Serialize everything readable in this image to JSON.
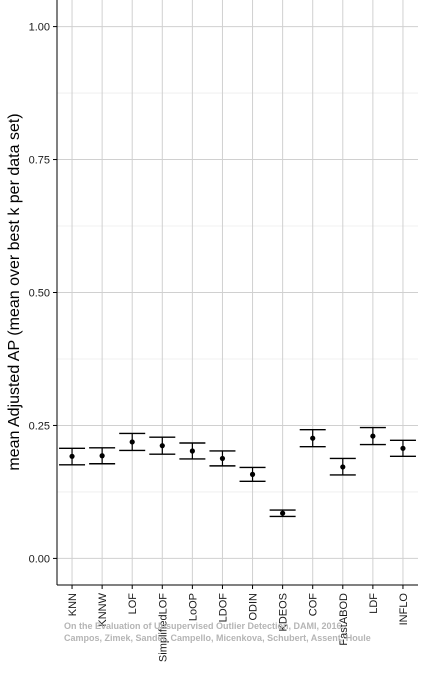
{
  "chart_data": {
    "type": "scatter",
    "ylabel": "mean Adjusted AP (mean over best k per data set)",
    "ylim": [
      -0.05,
      1.05
    ],
    "yticks": [
      "0.00",
      "0.25",
      "0.50",
      "0.75",
      "1.00"
    ],
    "grid": true,
    "categories": [
      "KNN",
      "KNNW",
      "LOF",
      "SimplifiedLOF",
      "LoOP",
      "LDOF",
      "ODIN",
      "KDEOS",
      "COF",
      "FastABOD",
      "LDF",
      "INFLO"
    ],
    "values": [
      0.192,
      0.193,
      0.219,
      0.212,
      0.202,
      0.188,
      0.158,
      0.085,
      0.226,
      0.172,
      0.23,
      0.207
    ],
    "lower": [
      0.176,
      0.178,
      0.203,
      0.196,
      0.187,
      0.174,
      0.145,
      0.079,
      0.21,
      0.157,
      0.214,
      0.192
    ],
    "upper": [
      0.207,
      0.208,
      0.235,
      0.228,
      0.217,
      0.202,
      0.171,
      0.091,
      0.242,
      0.188,
      0.246,
      0.222
    ],
    "colors": {
      "point": "#000000",
      "grid_major": "#d0d0d0",
      "grid_minor": "#ececec",
      "axis": "#000000"
    }
  },
  "watermark": {
    "line1": "On the Evaluation of Unsupervised Outlier Detection, DAMI, 2016.",
    "line2": "Campos, Zimek, Sander, Campello, Micenkova, Schubert, Assent, Houle"
  }
}
